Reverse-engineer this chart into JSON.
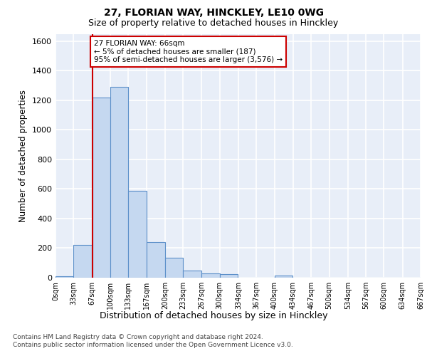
{
  "title_line1": "27, FLORIAN WAY, HINCKLEY, LE10 0WG",
  "title_line2": "Size of property relative to detached houses in Hinckley",
  "xlabel": "Distribution of detached houses by size in Hinckley",
  "ylabel": "Number of detached properties",
  "bar_color": "#c5d8f0",
  "bar_edge_color": "#5b8fc9",
  "background_color": "#e8eef8",
  "annotation_box_color": "#cc0000",
  "annotation_text": "27 FLORIAN WAY: 66sqm\n← 5% of detached houses are smaller (187)\n95% of semi-detached houses are larger (3,576) →",
  "vline_x": 67,
  "vline_color": "#cc0000",
  "bin_edges": [
    0,
    33,
    67,
    100,
    133,
    167,
    200,
    233,
    267,
    300,
    334,
    367,
    400,
    434,
    467,
    500,
    534,
    567,
    600,
    634,
    667
  ],
  "bar_heights": [
    10,
    220,
    1220,
    1290,
    590,
    240,
    135,
    50,
    30,
    25,
    0,
    0,
    15,
    0,
    0,
    0,
    0,
    0,
    0,
    0
  ],
  "ylim": [
    0,
    1650
  ],
  "yticks": [
    0,
    200,
    400,
    600,
    800,
    1000,
    1200,
    1400,
    1600
  ],
  "footer_line1": "Contains HM Land Registry data © Crown copyright and database right 2024.",
  "footer_line2": "Contains public sector information licensed under the Open Government Licence v3.0.",
  "tick_labels": [
    "0sqm",
    "33sqm",
    "67sqm",
    "100sqm",
    "133sqm",
    "167sqm",
    "200sqm",
    "233sqm",
    "267sqm",
    "300sqm",
    "334sqm",
    "367sqm",
    "400sqm",
    "434sqm",
    "467sqm",
    "500sqm",
    "534sqm",
    "567sqm",
    "600sqm",
    "634sqm",
    "667sqm"
  ]
}
